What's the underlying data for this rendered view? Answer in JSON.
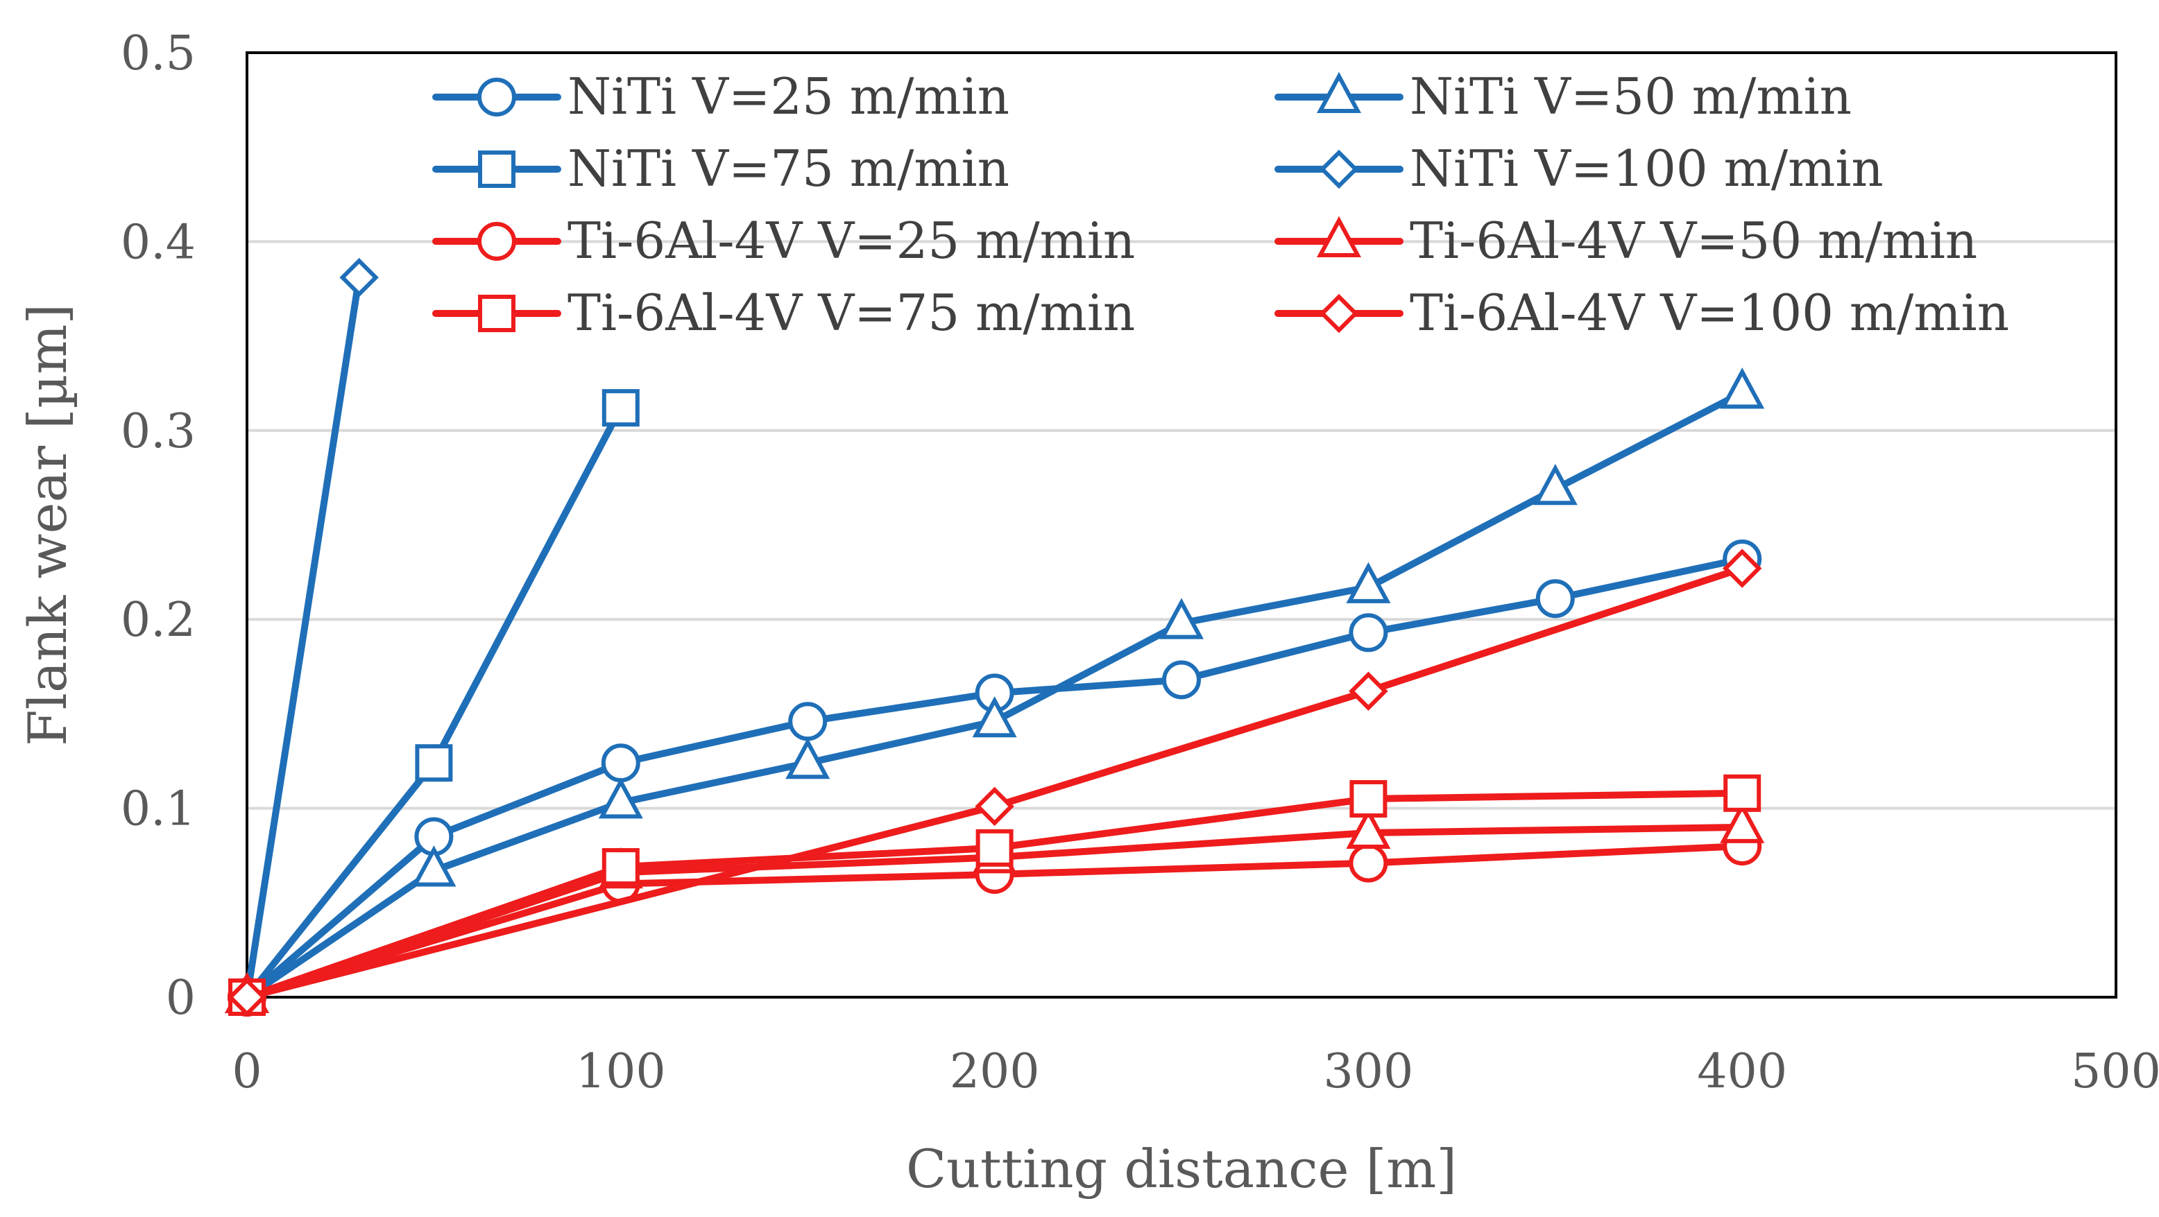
{
  "chart_data": {
    "type": "line",
    "title": "",
    "xlabel": "Cutting distance [m]",
    "ylabel": "Flank wear [µm]",
    "xlim": [
      0,
      500
    ],
    "ylim": [
      0,
      0.5
    ],
    "x_ticks": [
      0,
      100,
      200,
      300,
      400,
      500
    ],
    "y_ticks": [
      0,
      0.1,
      0.2,
      0.3,
      0.4,
      0.5
    ],
    "x_tick_labels": [
      "0",
      "100",
      "200",
      "300",
      "400",
      "500"
    ],
    "y_tick_labels": [
      "0",
      "0.1",
      "0.2",
      "0.3",
      "0.4",
      "0.5"
    ],
    "grid": "horizontal",
    "legend_position": "top",
    "series": [
      {
        "name": "NiTi V=25 m/min",
        "color": "#1F6FB8",
        "marker": "circle",
        "x": [
          0,
          50,
          100,
          150,
          200,
          250,
          300,
          350,
          400
        ],
        "y": [
          0,
          0.085,
          0.124,
          0.146,
          0.161,
          0.168,
          0.193,
          0.211,
          0.232
        ]
      },
      {
        "name": "NiTi V=50 m/min",
        "color": "#1F6FB8",
        "marker": "triangle",
        "x": [
          0,
          50,
          100,
          150,
          200,
          250,
          300,
          350,
          400
        ],
        "y": [
          0,
          0.067,
          0.103,
          0.124,
          0.146,
          0.198,
          0.217,
          0.269,
          0.32
        ]
      },
      {
        "name": "NiTi V=75 m/min",
        "color": "#1F6FB8",
        "marker": "square",
        "x": [
          0,
          50,
          100
        ],
        "y": [
          0,
          0.124,
          0.312
        ]
      },
      {
        "name": "NiTi V=100 m/min",
        "color": "#1F6FB8",
        "marker": "diamond",
        "x": [
          0,
          30
        ],
        "y": [
          0,
          0.381
        ]
      },
      {
        "name": "Ti-6Al-4V V=25 m/min",
        "color": "#EE1C1C",
        "marker": "circle",
        "x": [
          0,
          100,
          200,
          300,
          400
        ],
        "y": [
          0,
          0.06,
          0.065,
          0.071,
          0.08
        ]
      },
      {
        "name": "Ti-6Al-4V V=50 m/min",
        "color": "#EE1C1C",
        "marker": "triangle",
        "x": [
          0,
          100,
          200,
          300,
          400
        ],
        "y": [
          0,
          0.066,
          0.074,
          0.087,
          0.09
        ]
      },
      {
        "name": "Ti-6Al-4V V=75 m/min",
        "color": "#EE1C1C",
        "marker": "square",
        "x": [
          0,
          100,
          200,
          300,
          400
        ],
        "y": [
          0,
          0.069,
          0.079,
          0.105,
          0.108
        ]
      },
      {
        "name": "Ti-6Al-4V V=100 m/min",
        "color": "#EE1C1C",
        "marker": "diamond",
        "x": [
          0,
          200,
          300,
          400
        ],
        "y": [
          0,
          0.101,
          0.162,
          0.227
        ]
      }
    ]
  }
}
